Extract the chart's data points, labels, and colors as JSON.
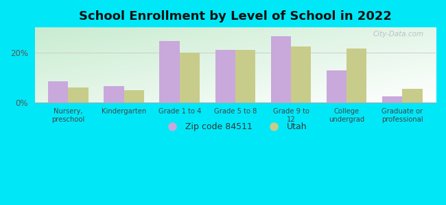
{
  "title": "School Enrollment by Level of School in 2022",
  "categories": [
    "Nursery,\npreschool",
    "Kindergarten",
    "Grade 1 to 4",
    "Grade 5 to 8",
    "Grade 9 to\n12",
    "College\nundergrad",
    "Graduate or\nprofessional"
  ],
  "zip_values": [
    8.5,
    6.5,
    24.5,
    21.0,
    26.5,
    13.0,
    2.5
  ],
  "utah_values": [
    6.0,
    5.0,
    20.0,
    21.0,
    22.5,
    21.5,
    5.5
  ],
  "zip_color": "#c9a8dc",
  "utah_color": "#c8cc8a",
  "ylim": [
    0,
    30
  ],
  "yticks": [
    0,
    20
  ],
  "ytick_labels": [
    "0%",
    "20%"
  ],
  "background_color": "#00e8f8",
  "grad_top_left": "#c8ecd0",
  "grad_bottom_right": "#ffffff",
  "bar_width": 0.36,
  "legend_zip_label": "Zip code 84511",
  "legend_utah_label": "Utah",
  "title_fontsize": 13,
  "watermark": "City-Data.com"
}
